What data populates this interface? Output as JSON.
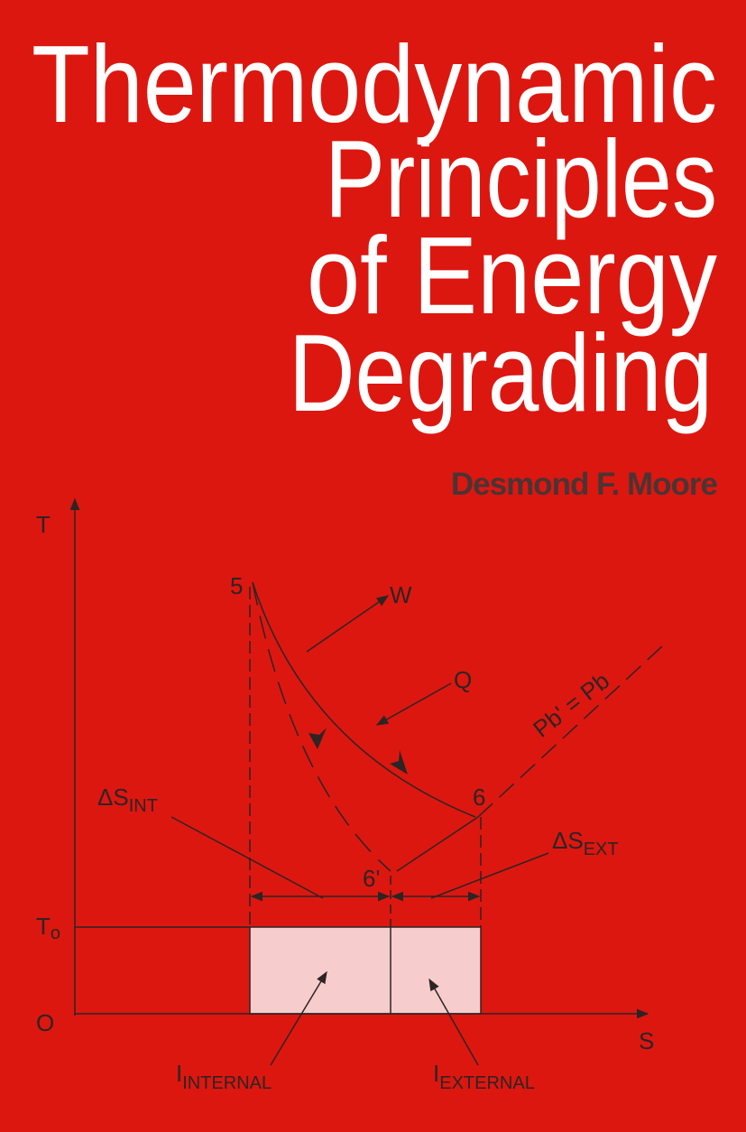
{
  "cover": {
    "title": [
      "Thermodynamic",
      "Principles",
      "of Energy",
      "Degrading"
    ],
    "author": "Desmond F. Moore",
    "diagram": {
      "axis_t": "T",
      "axis_s": "S",
      "origin": "O",
      "t0": {
        "main": "T",
        "sub": "o"
      },
      "point_5": "5",
      "point_6": "6",
      "point_6p": "6'",
      "work": "W",
      "heat": "Q",
      "isobar": "Pb' = Pb",
      "ds_int": {
        "main": "ΔS",
        "sub": "INT"
      },
      "ds_ext": {
        "main": "ΔS",
        "sub": "EXT"
      },
      "i_internal": {
        "main": "I",
        "sub": "INTERNAL"
      },
      "i_external": {
        "main": "I",
        "sub": "EXTERNAL"
      }
    }
  }
}
